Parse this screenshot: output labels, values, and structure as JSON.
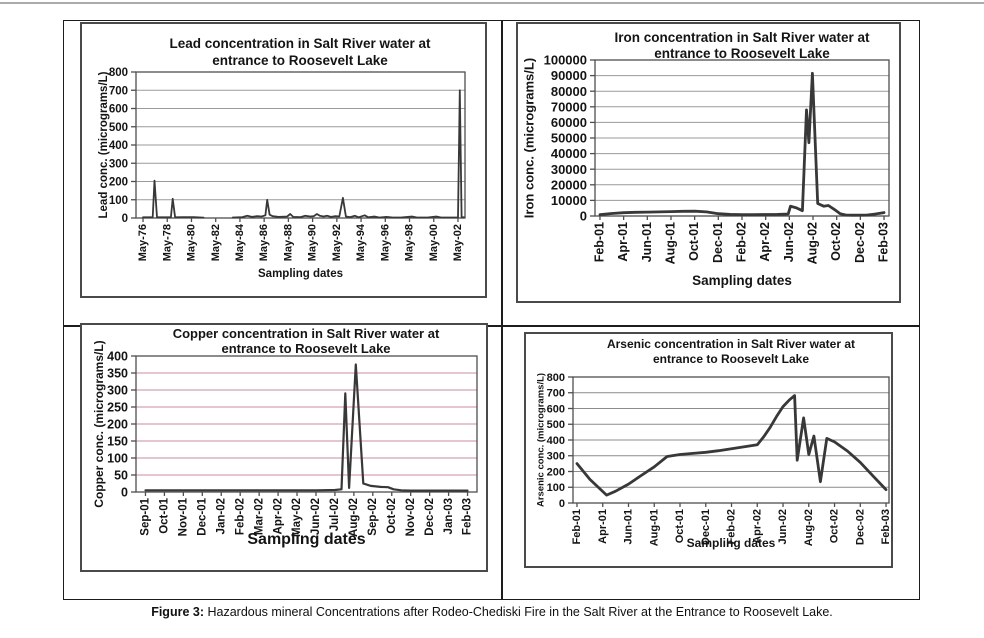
{
  "caption": {
    "label": "Figure 3:",
    "text": " Hazardous mineral Concentrations after Rodeo-Chediski Fire in the Salt River at the Entrance to Roosevelt Lake."
  },
  "chart_data": [
    {
      "id": "lead",
      "type": "line",
      "title_lines": [
        "Lead concentration in Salt River water at",
        "entrance to Roosevelt Lake"
      ],
      "ylabel": "Lead conc. (micrograms/L)",
      "xlabel": "Sampling dates",
      "ylim": [
        0,
        800
      ],
      "y_ticks": [
        0,
        100,
        200,
        300,
        400,
        500,
        600,
        700,
        800
      ],
      "x_domain": [
        1975.42,
        2002.58
      ],
      "x_ticks": [
        {
          "x": 1976,
          "label": "May-76"
        },
        {
          "x": 1978,
          "label": "May-78"
        },
        {
          "x": 1980,
          "label": "May-80"
        },
        {
          "x": 1982,
          "label": "May-82"
        },
        {
          "x": 1984,
          "label": "May-84"
        },
        {
          "x": 1986,
          "label": "May-86"
        },
        {
          "x": 1988,
          "label": "May-88"
        },
        {
          "x": 1990,
          "label": "May-90"
        },
        {
          "x": 1992,
          "label": "May-92"
        },
        {
          "x": 1994,
          "label": "May-94"
        },
        {
          "x": 1996,
          "label": "May-96"
        },
        {
          "x": 1998,
          "label": "May-98"
        },
        {
          "x": 2000,
          "label": "May-00"
        },
        {
          "x": 2002,
          "label": "May-02"
        }
      ],
      "grid_color": "#9a9a9a",
      "line_color": "#383838",
      "series": [
        {
          "points": [
            [
              1976.0,
              4
            ],
            [
              1976.8,
              4
            ],
            [
              1976.95,
              205
            ],
            [
              1977.15,
              4
            ],
            [
              1978.3,
              4
            ],
            [
              1978.45,
              105
            ],
            [
              1978.65,
              4
            ],
            [
              1979.3,
              5
            ],
            [
              1980.2,
              5
            ],
            [
              1981.0,
              2
            ]
          ]
        },
        {
          "points": [
            [
              1983.4,
              3
            ],
            [
              1984.2,
              5
            ],
            [
              1984.6,
              12
            ],
            [
              1985.0,
              6
            ],
            [
              1985.4,
              10
            ],
            [
              1985.8,
              8
            ],
            [
              1986.1,
              15
            ],
            [
              1986.25,
              100
            ],
            [
              1986.45,
              18
            ],
            [
              1986.7,
              10
            ],
            [
              1987.2,
              6
            ],
            [
              1987.9,
              8
            ],
            [
              1988.15,
              22
            ],
            [
              1988.4,
              6
            ],
            [
              1989.0,
              5
            ],
            [
              1989.4,
              12
            ],
            [
              1989.8,
              8
            ],
            [
              1990.1,
              10
            ],
            [
              1990.35,
              22
            ],
            [
              1990.6,
              12
            ],
            [
              1990.9,
              8
            ],
            [
              1991.2,
              12
            ],
            [
              1991.5,
              6
            ],
            [
              1991.9,
              10
            ],
            [
              1992.2,
              8
            ],
            [
              1992.5,
              110
            ],
            [
              1992.75,
              8
            ],
            [
              1993.1,
              5
            ],
            [
              1993.5,
              12
            ],
            [
              1993.8,
              4
            ],
            [
              1994.3,
              15
            ],
            [
              1994.6,
              4
            ],
            [
              1995.1,
              8
            ],
            [
              1995.5,
              3
            ],
            [
              1996.1,
              6
            ],
            [
              1996.6,
              3
            ],
            [
              1997.3,
              3
            ],
            [
              1998.2,
              8
            ],
            [
              1998.6,
              3
            ],
            [
              1999.5,
              3
            ],
            [
              2000.2,
              8
            ],
            [
              2000.6,
              3
            ],
            [
              2001.4,
              3
            ],
            [
              2002.0,
              3
            ],
            [
              2002.15,
              700
            ],
            [
              2002.3,
              4
            ],
            [
              2002.5,
              4
            ]
          ]
        }
      ]
    },
    {
      "id": "iron",
      "type": "line",
      "title_lines": [
        "Iron concentration in Salt River water at",
        "entrance to Roosevelt Lake"
      ],
      "ylabel": "Iron conc. (micrograms/L)",
      "xlabel": "Sampling dates",
      "ylim": [
        0,
        100000
      ],
      "y_ticks": [
        0,
        10000,
        20000,
        30000,
        40000,
        50000,
        60000,
        70000,
        80000,
        90000,
        100000
      ],
      "x_domain": [
        -0.42,
        24.42
      ],
      "x_ticks": [
        {
          "x": 0,
          "label": "Feb-01"
        },
        {
          "x": 2,
          "label": "Apr-01"
        },
        {
          "x": 4,
          "label": "Jun-01"
        },
        {
          "x": 6,
          "label": "Aug-01"
        },
        {
          "x": 8,
          "label": "Oct-01"
        },
        {
          "x": 10,
          "label": "Dec-01"
        },
        {
          "x": 12,
          "label": "Feb-02"
        },
        {
          "x": 14,
          "label": "Apr-02"
        },
        {
          "x": 16,
          "label": "Jun-02"
        },
        {
          "x": 18,
          "label": "Aug-02"
        },
        {
          "x": 20,
          "label": "Oct-02"
        },
        {
          "x": 22,
          "label": "Dec-02"
        },
        {
          "x": 24,
          "label": "Feb-03"
        }
      ],
      "grid_color": "#9a9a9a",
      "line_color": "#383838",
      "series": [
        {
          "points": [
            [
              0,
              900
            ],
            [
              1,
              1600
            ],
            [
              2,
              2100
            ],
            [
              3,
              2400
            ],
            [
              4,
              2500
            ],
            [
              5,
              2600
            ],
            [
              6,
              2800
            ],
            [
              7,
              3000
            ],
            [
              8,
              3100
            ],
            [
              9,
              2600
            ],
            [
              10,
              1500
            ],
            [
              11,
              1000
            ],
            [
              12,
              900
            ],
            [
              13,
              850
            ],
            [
              14,
              950
            ],
            [
              15,
              1000
            ],
            [
              15.9,
              1300
            ],
            [
              16.1,
              6300
            ],
            [
              16.6,
              5200
            ],
            [
              17.1,
              3400
            ],
            [
              17.45,
              68000
            ],
            [
              17.65,
              47000
            ],
            [
              17.95,
              91500
            ],
            [
              18.4,
              8000
            ],
            [
              18.9,
              6300
            ],
            [
              19.3,
              6700
            ],
            [
              19.8,
              4200
            ],
            [
              20.3,
              1500
            ],
            [
              20.8,
              600
            ],
            [
              21.5,
              500
            ],
            [
              22.5,
              600
            ],
            [
              23.2,
              1200
            ],
            [
              24,
              2200
            ]
          ]
        }
      ]
    },
    {
      "id": "copper",
      "type": "line",
      "title_lines": [
        "Copper concentration in Salt River water at",
        "entrance to Roosevelt Lake"
      ],
      "ylabel": "Copper conc. (micrograms/L)",
      "xlabel": "Sampling dates",
      "ylim": [
        0,
        400
      ],
      "y_ticks": [
        0,
        50,
        100,
        150,
        200,
        250,
        300,
        350,
        400
      ],
      "x_domain": [
        -0.5,
        17.5
      ],
      "x_ticks": [
        {
          "x": 0,
          "label": "Sep-01"
        },
        {
          "x": 1,
          "label": "Oct-01"
        },
        {
          "x": 2,
          "label": "Nov-01"
        },
        {
          "x": 3,
          "label": "Dec-01"
        },
        {
          "x": 4,
          "label": "Jan-02"
        },
        {
          "x": 5,
          "label": "Feb-02"
        },
        {
          "x": 6,
          "label": "Mar-02"
        },
        {
          "x": 7,
          "label": "Apr-02"
        },
        {
          "x": 8,
          "label": "May-02"
        },
        {
          "x": 9,
          "label": "Jun-02"
        },
        {
          "x": 10,
          "label": "Jul-02"
        },
        {
          "x": 11,
          "label": "Aug-02"
        },
        {
          "x": 12,
          "label": "Sep-02"
        },
        {
          "x": 13,
          "label": "Oct-02"
        },
        {
          "x": 14,
          "label": "Nov-02"
        },
        {
          "x": 15,
          "label": "Dec-02"
        },
        {
          "x": 16,
          "label": "Jan-03"
        },
        {
          "x": 17,
          "label": "Feb-03"
        }
      ],
      "grid_color": "#c98ba2",
      "line_color": "#383838",
      "series": [
        {
          "points": [
            [
              0,
              5
            ],
            [
              1,
              5
            ],
            [
              2,
              5
            ],
            [
              3,
              5
            ],
            [
              4,
              5
            ],
            [
              5,
              5
            ],
            [
              6,
              5
            ],
            [
              7,
              5
            ],
            [
              8,
              5
            ],
            [
              9,
              5
            ],
            [
              10,
              6
            ],
            [
              10.35,
              8
            ],
            [
              10.55,
              290
            ],
            [
              10.75,
              12
            ],
            [
              11.1,
              375
            ],
            [
              11.5,
              25
            ],
            [
              11.9,
              18
            ],
            [
              12.4,
              15
            ],
            [
              12.8,
              14
            ],
            [
              13.1,
              8
            ],
            [
              13.5,
              5
            ],
            [
              14,
              4
            ],
            [
              15,
              4
            ],
            [
              16,
              4
            ],
            [
              17,
              4
            ]
          ]
        }
      ]
    },
    {
      "id": "arsenic",
      "type": "line",
      "title_lines": [
        "Arsenic concentration in Salt River water at",
        "entrance to Roosevelt Lake"
      ],
      "ylabel": "Arsenic conc. (micrograms/L)",
      "xlabel": "Sampling dates",
      "ylim": [
        0,
        800
      ],
      "y_ticks": [
        0,
        100,
        200,
        300,
        400,
        500,
        600,
        700,
        800
      ],
      "x_domain": [
        -0.31,
        24.23
      ],
      "x_ticks": [
        {
          "x": 0,
          "label": "Feb-01"
        },
        {
          "x": 2,
          "label": "Apr-01"
        },
        {
          "x": 4,
          "label": "Jun-01"
        },
        {
          "x": 6,
          "label": "Aug-01"
        },
        {
          "x": 8,
          "label": "Oct-01"
        },
        {
          "x": 10,
          "label": "Dec-01"
        },
        {
          "x": 12,
          "label": "Feb-02"
        },
        {
          "x": 14,
          "label": "Apr-02"
        },
        {
          "x": 16,
          "label": "Jun-02"
        },
        {
          "x": 18,
          "label": "Aug-02"
        },
        {
          "x": 20,
          "label": "Oct-02"
        },
        {
          "x": 22,
          "label": "Dec-02"
        },
        {
          "x": 24,
          "label": "Feb-03"
        }
      ],
      "grid_color": "#8c8c8c",
      "line_color": "#383838",
      "series": [
        {
          "points": [
            [
              0,
              250
            ],
            [
              1,
              150
            ],
            [
              2.3,
              50
            ],
            [
              3,
              75
            ],
            [
              4,
              120
            ],
            [
              5,
              175
            ],
            [
              6,
              230
            ],
            [
              7,
              295
            ],
            [
              8,
              308
            ],
            [
              9,
              315
            ],
            [
              10,
              322
            ],
            [
              11,
              332
            ],
            [
              12,
              345
            ],
            [
              13,
              357
            ],
            [
              14,
              370
            ],
            [
              14.5,
              420
            ],
            [
              15,
              480
            ],
            [
              15.5,
              550
            ],
            [
              16,
              612
            ],
            [
              16.5,
              655
            ],
            [
              16.9,
              682
            ],
            [
              17.1,
              272
            ],
            [
              17.6,
              540
            ],
            [
              18.0,
              308
            ],
            [
              18.4,
              425
            ],
            [
              18.9,
              135
            ],
            [
              19.4,
              410
            ],
            [
              20,
              388
            ],
            [
              21,
              330
            ],
            [
              22,
              258
            ],
            [
              23,
              170
            ],
            [
              24,
              85
            ]
          ]
        }
      ]
    }
  ]
}
